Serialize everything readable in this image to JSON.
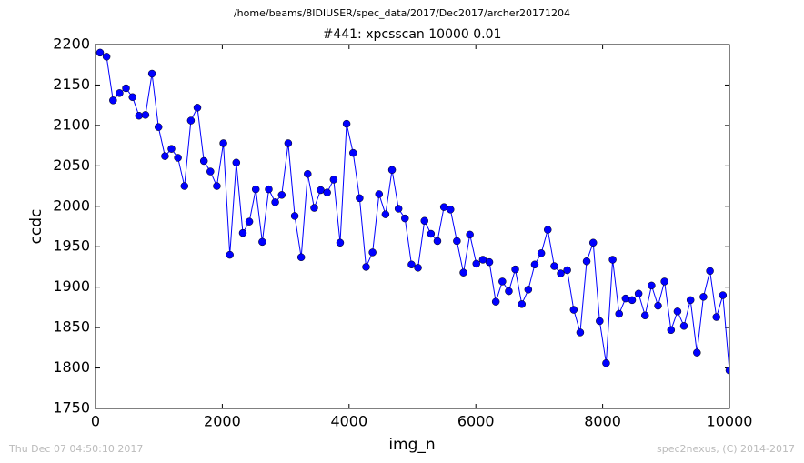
{
  "chart_data": {
    "type": "line",
    "suptitle": "/home/beams/8IDIUSER/spec_data/2017/Dec2017/archer20171204",
    "title": "#441: xpcsscan 10000 0.01",
    "x_label": "img_n",
    "y_label": "ccdc",
    "footer_left": "Thu Dec 07 04:50:10 2017",
    "footer_right": "spec2nexus, (C) 2014-2017",
    "x": [
      72,
      174,
      277,
      379,
      481,
      584,
      686,
      788,
      891,
      993,
      1096,
      1198,
      1300,
      1403,
      1505,
      1607,
      1710,
      1812,
      1914,
      2017,
      2119,
      2221,
      2324,
      2426,
      2528,
      2631,
      2733,
      2835,
      2938,
      3040,
      3143,
      3245,
      3347,
      3450,
      3552,
      3654,
      3757,
      3859,
      3961,
      4064,
      4166,
      4268,
      4371,
      4473,
      4575,
      4678,
      4780,
      4882,
      4985,
      5087,
      5190,
      5292,
      5394,
      5497,
      5599,
      5701,
      5804,
      5906,
      6008,
      6111,
      6213,
      6315,
      6418,
      6520,
      6622,
      6725,
      6827,
      6929,
      7032,
      7134,
      7237,
      7339,
      7441,
      7544,
      7646,
      7748,
      7851,
      7953,
      8055,
      8158,
      8260,
      8362,
      8465,
      8567,
      8669,
      8772,
      8874,
      8976,
      9079,
      9181,
      9283,
      9386,
      9488,
      9590,
      9693,
      9795,
      9897,
      10000
    ],
    "series": [
      {
        "name": "ccdc",
        "color": "#0000ff",
        "values": [
          2190,
          2185,
          2131,
          2140,
          2146,
          2135,
          2112,
          2113,
          2164,
          2098,
          2062,
          2071,
          2060,
          2025,
          2106,
          2122,
          2056,
          2043,
          2025,
          2078,
          1940,
          2054,
          1967,
          1981,
          2021,
          1956,
          2021,
          2005,
          2014,
          2078,
          1988,
          1937,
          2040,
          1998,
          2020,
          2017,
          2033,
          1955,
          2102,
          2066,
          2010,
          1925,
          1943,
          2015,
          1990,
          2045,
          1997,
          1985,
          1928,
          1924,
          1982,
          1966,
          1957,
          1999,
          1996,
          1957,
          1918,
          1965,
          1929,
          1934,
          1931,
          1882,
          1907,
          1895,
          1922,
          1879,
          1897,
          1928,
          1942,
          1971,
          1926,
          1917,
          1921,
          1872,
          1844,
          1932,
          1955,
          1858,
          1806,
          1934,
          1867,
          1886,
          1884,
          1892,
          1865,
          1902,
          1877,
          1907,
          1847,
          1870,
          1852,
          1884,
          1819,
          1888,
          1920,
          1863,
          1890,
          1797
        ]
      }
    ],
    "xlim": [
      0,
      10000
    ],
    "xticks": [
      0,
      2000,
      4000,
      6000,
      8000,
      10000
    ],
    "ylim": [
      1750,
      2200
    ],
    "yticks": [
      1750,
      1800,
      1850,
      1900,
      1950,
      2000,
      2050,
      2100,
      2150,
      2200
    ]
  }
}
